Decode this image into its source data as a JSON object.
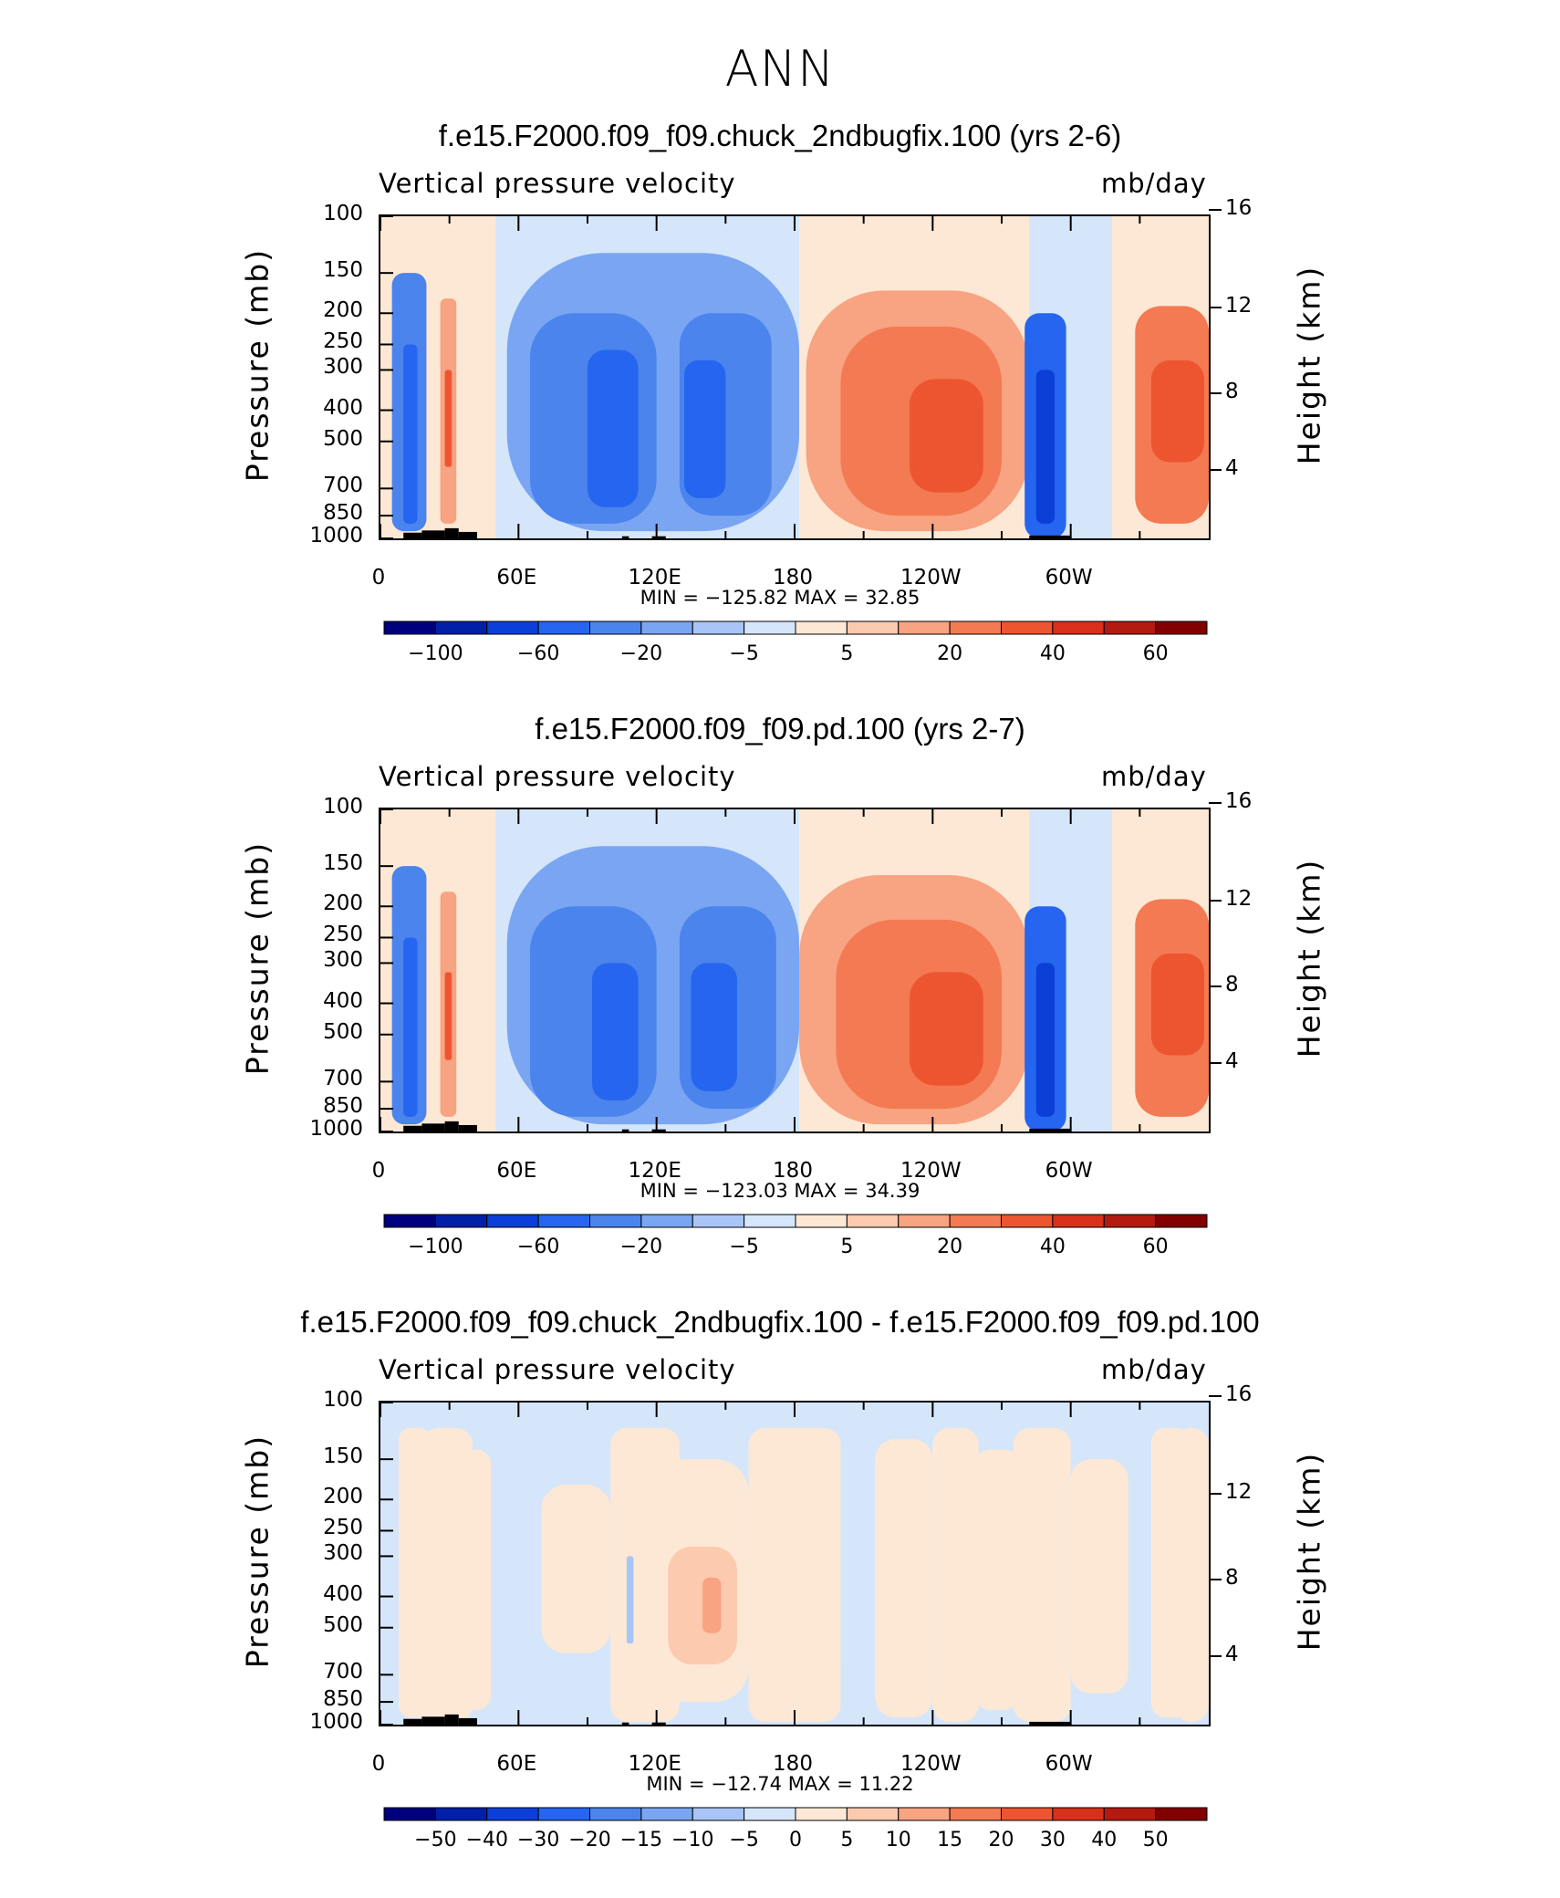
{
  "figure_title": "ANN",
  "panels": [
    {
      "title": "f.e15.F2000.f09_f09.chuck_2ndbugfix.100 (yrs 2-6)",
      "variable": "Vertical pressure velocity",
      "units": "mb/day",
      "y_left_label": "Pressure (mb)",
      "y_right_label": "Height (km)",
      "minmax": "MIN = −125.82   MAX =   32.85",
      "colorbar_labels": [
        "−100",
        "−60",
        "−20",
        "−5",
        "5",
        "20",
        "40",
        "60"
      ]
    },
    {
      "title": "f.e15.F2000.f09_f09.pd.100 (yrs 2-7)",
      "variable": "Vertical pressure velocity",
      "units": "mb/day",
      "y_left_label": "Pressure (mb)",
      "y_right_label": "Height (km)",
      "minmax": "MIN = −123.03   MAX =   34.39",
      "colorbar_labels": [
        "−100",
        "−60",
        "−20",
        "−5",
        "5",
        "20",
        "40",
        "60"
      ]
    },
    {
      "title": "f.e15.F2000.f09_f09.chuck_2ndbugfix.100 - f.e15.F2000.f09_f09.pd.100",
      "variable": "Vertical pressure velocity",
      "units": "mb/day",
      "y_left_label": "Pressure (mb)",
      "y_right_label": "Height (km)",
      "minmax": "MIN = −12.74   MAX =   11.22",
      "colorbar_labels": [
        "−50",
        "−40",
        "−30",
        "−20",
        "−15",
        "−10",
        "−5",
        "0",
        "5",
        "10",
        "15",
        "20",
        "30",
        "40",
        "50"
      ]
    }
  ],
  "axes": {
    "x_ticks": [
      "0",
      "60E",
      "120E",
      "180",
      "120W",
      "60W"
    ],
    "y_ticks": [
      "100",
      "150",
      "200",
      "250",
      "300",
      "400",
      "500",
      "700",
      "850",
      "1000"
    ],
    "height_ticks": [
      "16",
      "12",
      "8",
      "4"
    ]
  },
  "colors": {
    "colorbar": [
      "#00007f",
      "#0020a8",
      "#0b3fd8",
      "#2565ef",
      "#4a84ec",
      "#7aa5f2",
      "#a9c5f7",
      "#d5e6fb",
      "#fde8d5",
      "#fccaae",
      "#f8a381",
      "#f37a52",
      "#ec5530",
      "#d7301b",
      "#b31a10",
      "#820000"
    ]
  },
  "chart_data": [
    {
      "type": "heatmap",
      "title": "f.e15.F2000.f09_f09.chuck_2ndbugfix.100 (yrs 2-6)",
      "xlabel": "",
      "ylabel": "Pressure (mb)",
      "x_ticks": [
        "0",
        "60E",
        "120E",
        "180",
        "120W",
        "60W"
      ],
      "y_ticks": [
        100,
        150,
        200,
        250,
        300,
        400,
        500,
        700,
        850,
        1000
      ],
      "y_scale": "log-pressure",
      "colorbar_levels": [
        -100,
        -80,
        -60,
        -40,
        -20,
        -10,
        -5,
        0,
        5,
        10,
        20,
        30,
        40,
        50,
        60
      ],
      "min": -125.82,
      "max": 32.85,
      "cells": [
        {
          "x": [
            5,
            20
          ],
          "p": [
            150,
            950
          ],
          "level": 1
        },
        {
          "x": [
            10,
            16
          ],
          "p": [
            250,
            900
          ],
          "level": 2
        },
        {
          "x": [
            26,
            33
          ],
          "p": [
            180,
            900
          ],
          "level": -1
        },
        {
          "x": [
            28,
            31
          ],
          "p": [
            300,
            600
          ],
          "level": -3
        },
        {
          "x": [
            55,
            182
          ],
          "p": [
            130,
            950
          ],
          "level": 0
        },
        {
          "x": [
            65,
            120
          ],
          "p": [
            200,
            900
          ],
          "level": 1
        },
        {
          "x": [
            90,
            112
          ],
          "p": [
            260,
            800
          ],
          "level": 2
        },
        {
          "x": [
            130,
            170
          ],
          "p": [
            200,
            850
          ],
          "level": 1
        },
        {
          "x": [
            132,
            150
          ],
          "p": [
            280,
            750
          ],
          "level": 2
        },
        {
          "x": [
            185,
            282
          ],
          "p": [
            170,
            950
          ],
          "level": -1
        },
        {
          "x": [
            200,
            270
          ],
          "p": [
            220,
            850
          ],
          "level": -2
        },
        {
          "x": [
            230,
            262
          ],
          "p": [
            320,
            720
          ],
          "level": -3
        },
        {
          "x": [
            280,
            298
          ],
          "p": [
            200,
            1000
          ],
          "level": 2
        },
        {
          "x": [
            285,
            293
          ],
          "p": [
            300,
            900
          ],
          "level": 3
        },
        {
          "x": [
            328,
            360
          ],
          "p": [
            190,
            900
          ],
          "level": -2
        },
        {
          "x": [
            335,
            358
          ],
          "p": [
            280,
            580
          ],
          "level": -3
        }
      ]
    },
    {
      "type": "heatmap",
      "title": "f.e15.F2000.f09_f09.pd.100 (yrs 2-7)",
      "xlabel": "",
      "ylabel": "Pressure (mb)",
      "x_ticks": [
        "0",
        "60E",
        "120E",
        "180",
        "120W",
        "60W"
      ],
      "y_ticks": [
        100,
        150,
        200,
        250,
        300,
        400,
        500,
        700,
        850,
        1000
      ],
      "y_scale": "log-pressure",
      "colorbar_levels": [
        -100,
        -80,
        -60,
        -40,
        -20,
        -10,
        -5,
        0,
        5,
        10,
        20,
        30,
        40,
        50,
        60
      ],
      "min": -123.03,
      "max": 34.39,
      "cells": [
        {
          "x": [
            5,
            20
          ],
          "p": [
            150,
            950
          ],
          "level": 1
        },
        {
          "x": [
            10,
            16
          ],
          "p": [
            250,
            900
          ],
          "level": 2
        },
        {
          "x": [
            26,
            33
          ],
          "p": [
            180,
            900
          ],
          "level": -1
        },
        {
          "x": [
            28,
            31
          ],
          "p": [
            320,
            600
          ],
          "level": -3
        },
        {
          "x": [
            55,
            182
          ],
          "p": [
            130,
            950
          ],
          "level": 0
        },
        {
          "x": [
            65,
            120
          ],
          "p": [
            200,
            900
          ],
          "level": 1
        },
        {
          "x": [
            92,
            112
          ],
          "p": [
            300,
            800
          ],
          "level": 2
        },
        {
          "x": [
            130,
            172
          ],
          "p": [
            200,
            850
          ],
          "level": 1
        },
        {
          "x": [
            135,
            155
          ],
          "p": [
            300,
            750
          ],
          "level": 2
        },
        {
          "x": [
            182,
            282
          ],
          "p": [
            160,
            950
          ],
          "level": -1
        },
        {
          "x": [
            198,
            270
          ],
          "p": [
            220,
            850
          ],
          "level": -2
        },
        {
          "x": [
            230,
            262
          ],
          "p": [
            320,
            720
          ],
          "level": -3
        },
        {
          "x": [
            280,
            298
          ],
          "p": [
            200,
            1000
          ],
          "level": 2
        },
        {
          "x": [
            285,
            293
          ],
          "p": [
            300,
            900
          ],
          "level": 3
        },
        {
          "x": [
            328,
            360
          ],
          "p": [
            190,
            900
          ],
          "level": -2
        },
        {
          "x": [
            335,
            358
          ],
          "p": [
            280,
            580
          ],
          "level": -3
        }
      ]
    },
    {
      "type": "heatmap",
      "title": "f.e15.F2000.f09_f09.chuck_2ndbugfix.100 - f.e15.F2000.f09_f09.pd.100",
      "xlabel": "",
      "ylabel": "Pressure (mb)",
      "x_ticks": [
        "0",
        "60E",
        "120E",
        "180",
        "120W",
        "60W"
      ],
      "y_ticks": [
        100,
        150,
        200,
        250,
        300,
        400,
        500,
        700,
        850,
        1000
      ],
      "y_scale": "log-pressure",
      "colorbar_levels": [
        -50,
        -40,
        -30,
        -20,
        -15,
        -10,
        -5,
        0,
        5,
        10,
        15,
        20,
        30,
        40,
        50
      ],
      "min": -12.74,
      "max": 11.22,
      "cells": [
        {
          "x": [
            8,
            22
          ],
          "p": [
            120,
            950
          ],
          "level": -1
        },
        {
          "x": [
            30,
            48
          ],
          "p": [
            140,
            900
          ],
          "level": -1
        },
        {
          "x": [
            70,
            100
          ],
          "p": [
            180,
            600
          ],
          "level": -1
        },
        {
          "x": [
            118,
            160
          ],
          "p": [
            150,
            850
          ],
          "level": -1
        },
        {
          "x": [
            125,
            155
          ],
          "p": [
            280,
            650
          ],
          "level": -2
        },
        {
          "x": [
            140,
            148
          ],
          "p": [
            350,
            520
          ],
          "level": -3
        },
        {
          "x": [
            180,
            200
          ],
          "p": [
            120,
            700
          ],
          "level": -1
        },
        {
          "x": [
            215,
            240
          ],
          "p": [
            130,
            950
          ],
          "level": -1
        },
        {
          "x": [
            258,
            278
          ],
          "p": [
            140,
            900
          ],
          "level": -1
        },
        {
          "x": [
            300,
            325
          ],
          "p": [
            150,
            800
          ],
          "level": -1
        },
        {
          "x": [
            335,
            352
          ],
          "p": [
            120,
            950
          ],
          "level": -1
        },
        {
          "x": [
            107,
            110
          ],
          "p": [
            300,
            560
          ],
          "level": 1
        }
      ]
    }
  ]
}
